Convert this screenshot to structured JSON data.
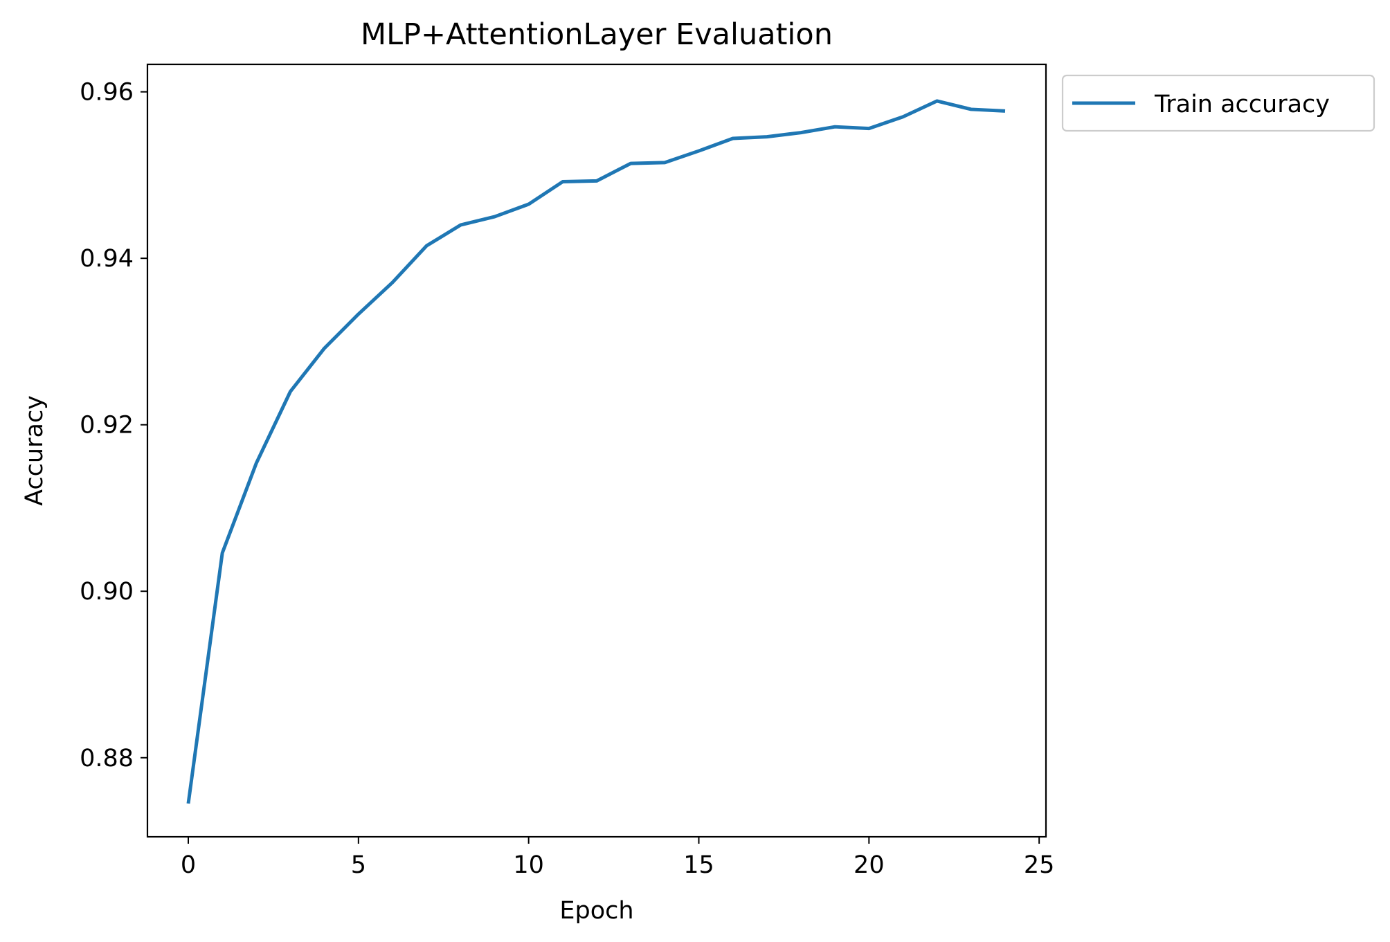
{
  "chart_data": {
    "type": "line",
    "title": "MLP+AttentionLayer Evaluation",
    "xlabel": "Epoch",
    "ylabel": "Accuracy",
    "xlim": [
      -1.2,
      25.2
    ],
    "ylim": [
      0.8705,
      0.9633
    ],
    "x_ticks": [
      0,
      5,
      10,
      15,
      20,
      25
    ],
    "x_tick_labels": [
      "0",
      "5",
      "10",
      "15",
      "20",
      "25"
    ],
    "y_ticks": [
      0.88,
      0.9,
      0.92,
      0.94,
      0.96
    ],
    "y_tick_labels": [
      "0.88",
      "0.90",
      "0.92",
      "0.94",
      "0.96"
    ],
    "grid": false,
    "legend_position": "outside-top-right",
    "series": [
      {
        "name": "Train accuracy",
        "color": "#1f77b4",
        "x": [
          0,
          1,
          2,
          3,
          4,
          5,
          6,
          7,
          8,
          9,
          10,
          11,
          12,
          13,
          14,
          15,
          16,
          17,
          18,
          19,
          20,
          21,
          22,
          23,
          24
        ],
        "y": [
          0.8745,
          0.9046,
          0.9154,
          0.924,
          0.9292,
          0.9333,
          0.9371,
          0.9415,
          0.944,
          0.945,
          0.9465,
          0.9492,
          0.9493,
          0.9514,
          0.9515,
          0.9529,
          0.9544,
          0.9546,
          0.9551,
          0.9558,
          0.9556,
          0.957,
          0.9589,
          0.9579,
          0.9577
        ]
      }
    ]
  }
}
